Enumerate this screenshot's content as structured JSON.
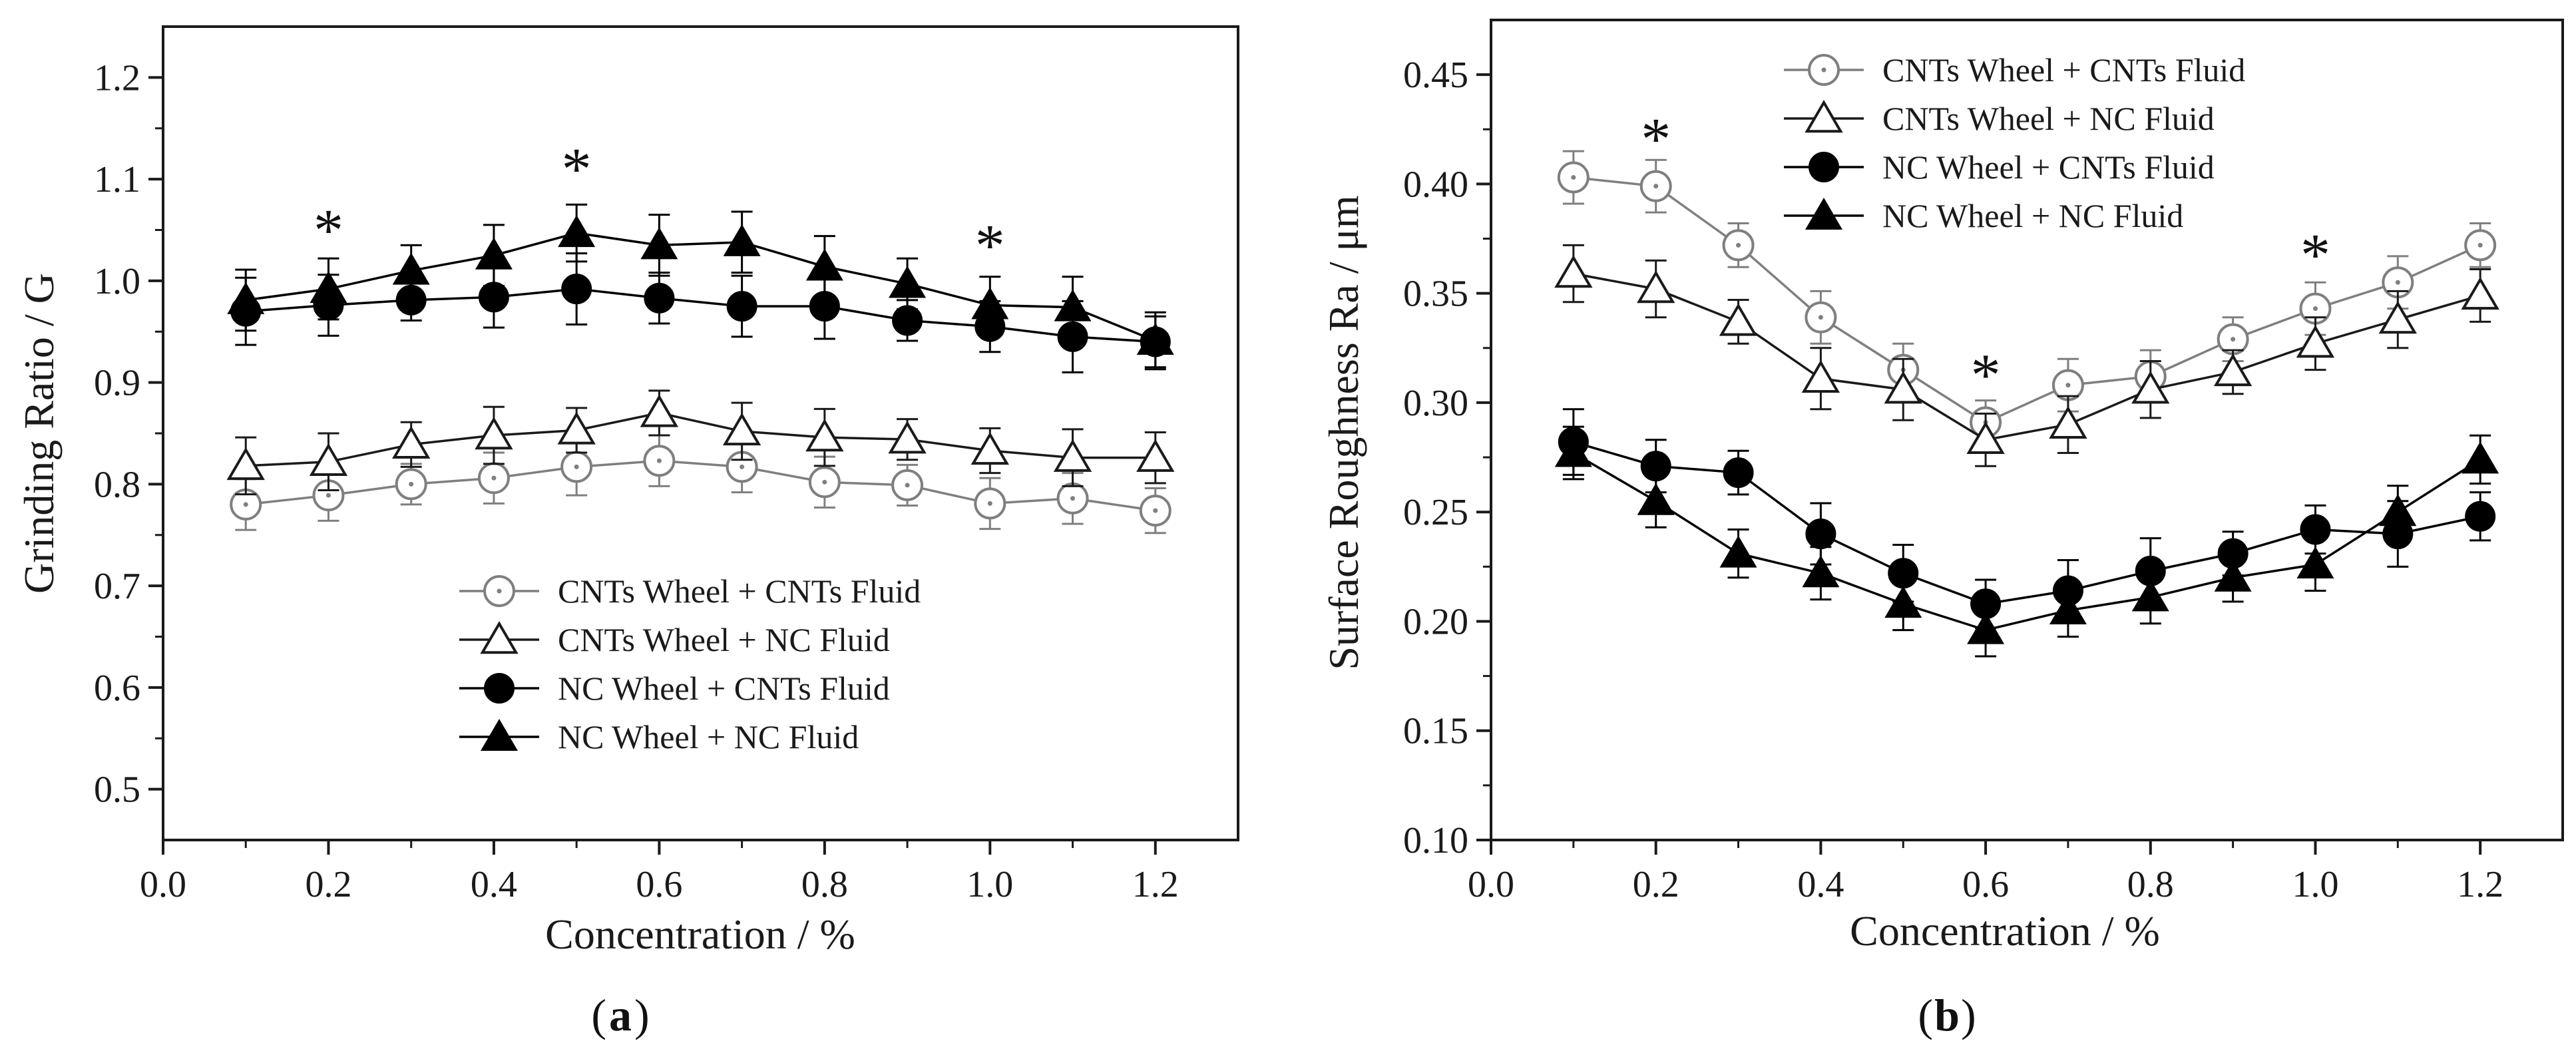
{
  "chart_data": [
    {
      "type": "line",
      "panel_label": "a",
      "xlabel": "Concentration / %",
      "ylabel": "Grinding Ratio / G",
      "xlim": [
        0.0,
        1.3
      ],
      "ylim": [
        0.45,
        1.25
      ],
      "xticks": [
        "0.0",
        "0.2",
        "0.4",
        "0.6",
        "0.8",
        "1.0",
        "1.2"
      ],
      "yticks": [
        "0.5",
        "0.6",
        "0.7",
        "0.8",
        "0.9",
        "1.0",
        "1.1",
        "1.2"
      ],
      "x": [
        0.1,
        0.2,
        0.3,
        0.4,
        0.5,
        0.6,
        0.7,
        0.8,
        0.9,
        1.0,
        1.1,
        1.2
      ],
      "legend_position": "bottom-center",
      "series": [
        {
          "name": "CNTs Wheel + CNTs Fluid",
          "marker": "dotted-circle",
          "color": "#7f7f7f",
          "values": [
            0.78,
            0.789,
            0.8,
            0.806,
            0.817,
            0.823,
            0.817,
            0.802,
            0.799,
            0.781,
            0.786,
            0.774
          ],
          "errors": [
            0.025,
            0.025,
            0.02,
            0.025,
            0.028,
            0.025,
            0.025,
            0.025,
            0.02,
            0.025,
            0.025,
            0.022
          ]
        },
        {
          "name": "CNTs Wheel + NC Fluid",
          "marker": "open-triangle",
          "color": "#1a1a1a",
          "values": [
            0.818,
            0.822,
            0.839,
            0.848,
            0.853,
            0.87,
            0.852,
            0.846,
            0.844,
            0.833,
            0.826,
            0.826
          ],
          "errors": [
            0.028,
            0.028,
            0.022,
            0.028,
            0.022,
            0.022,
            0.028,
            0.028,
            0.02,
            0.022,
            0.028,
            0.025
          ]
        },
        {
          "name": "NC Wheel + CNTs Fluid",
          "marker": "filled-circle",
          "color": "#000000",
          "values": [
            0.97,
            0.976,
            0.981,
            0.984,
            0.992,
            0.983,
            0.975,
            0.975,
            0.961,
            0.955,
            0.945,
            0.94
          ],
          "errors": [
            0.033,
            0.03,
            0.02,
            0.03,
            0.035,
            0.025,
            0.03,
            0.032,
            0.02,
            0.025,
            0.035,
            0.025
          ]
        },
        {
          "name": "NC Wheel + NC Fluid",
          "marker": "filled-triangle",
          "color": "#000000",
          "values": [
            0.981,
            0.992,
            1.01,
            1.025,
            1.047,
            1.035,
            1.038,
            1.014,
            0.997,
            0.976,
            0.974,
            0.941
          ],
          "errors": [
            0.03,
            0.03,
            0.025,
            0.03,
            0.028,
            0.03,
            0.03,
            0.03,
            0.025,
            0.028,
            0.03,
            0.028
          ]
        }
      ],
      "annotations": [
        {
          "text": "*",
          "x": 0.2,
          "y": 1.055
        },
        {
          "text": "*",
          "x": 0.5,
          "y": 1.115
        },
        {
          "text": "*",
          "x": 1.0,
          "y": 1.04
        }
      ]
    },
    {
      "type": "line",
      "panel_label": "b",
      "xlabel": "Concentration / %",
      "ylabel": "Surface Roughness Ra / μm",
      "xlim": [
        0.0,
        1.3
      ],
      "ylim": [
        0.1,
        0.475
      ],
      "xticks": [
        "0.0",
        "0.2",
        "0.4",
        "0.6",
        "0.8",
        "1.0",
        "1.2"
      ],
      "yticks": [
        "0.10",
        "0.15",
        "0.20",
        "0.25",
        "0.30",
        "0.35",
        "0.40",
        "0.45"
      ],
      "x": [
        0.1,
        0.2,
        0.3,
        0.4,
        0.5,
        0.6,
        0.7,
        0.8,
        0.9,
        1.0,
        1.1,
        1.2
      ],
      "legend_position": "top-center",
      "series": [
        {
          "name": "CNTs Wheel + CNTs Fluid",
          "marker": "dotted-circle",
          "color": "#7f7f7f",
          "values": [
            0.403,
            0.399,
            0.372,
            0.339,
            0.315,
            0.291,
            0.308,
            0.312,
            0.329,
            0.343,
            0.355,
            0.372
          ],
          "errors": [
            0.012,
            0.012,
            0.01,
            0.012,
            0.012,
            0.01,
            0.012,
            0.012,
            0.01,
            0.012,
            0.012,
            0.01
          ]
        },
        {
          "name": "CNTs Wheel + NC Fluid",
          "marker": "open-triangle",
          "color": "#1a1a1a",
          "values": [
            0.359,
            0.352,
            0.337,
            0.311,
            0.306,
            0.283,
            0.29,
            0.306,
            0.314,
            0.327,
            0.338,
            0.349
          ],
          "errors": [
            0.013,
            0.013,
            0.01,
            0.014,
            0.014,
            0.012,
            0.013,
            0.013,
            0.01,
            0.012,
            0.013,
            0.012
          ]
        },
        {
          "name": "NC Wheel + CNTs Fluid",
          "marker": "filled-circle",
          "color": "#000000",
          "values": [
            0.282,
            0.271,
            0.268,
            0.24,
            0.222,
            0.208,
            0.214,
            0.223,
            0.231,
            0.242,
            0.24,
            0.248
          ],
          "errors": [
            0.015,
            0.012,
            0.01,
            0.014,
            0.013,
            0.011,
            0.014,
            0.015,
            0.01,
            0.011,
            0.015,
            0.011
          ]
        },
        {
          "name": "NC Wheel + NC Fluid",
          "marker": "filled-triangle",
          "color": "#000000",
          "values": [
            0.277,
            0.255,
            0.231,
            0.222,
            0.208,
            0.196,
            0.205,
            0.211,
            0.22,
            0.226,
            0.25,
            0.274
          ],
          "errors": [
            0.012,
            0.012,
            0.011,
            0.012,
            0.012,
            0.012,
            0.012,
            0.012,
            0.011,
            0.012,
            0.012,
            0.011
          ]
        }
      ],
      "annotations": [
        {
          "text": "*",
          "x": 0.2,
          "y": 0.423
        },
        {
          "text": "*",
          "x": 0.6,
          "y": 0.315
        },
        {
          "text": "*",
          "x": 1.0,
          "y": 0.37
        }
      ]
    }
  ]
}
